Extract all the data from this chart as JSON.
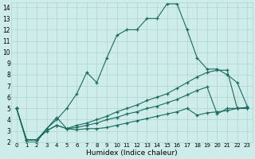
{
  "xlabel": "Humidex (Indice chaleur)",
  "bg_color": "#ceecea",
  "grid_color": "#aed4d0",
  "line_color": "#1a6b5e",
  "xlim": [
    -0.5,
    23.5
  ],
  "ylim": [
    2,
    14.4
  ],
  "xticks": [
    0,
    1,
    2,
    3,
    4,
    5,
    6,
    7,
    8,
    9,
    10,
    11,
    12,
    13,
    14,
    15,
    16,
    17,
    18,
    19,
    20,
    21,
    22,
    23
  ],
  "yticks": [
    2,
    3,
    4,
    5,
    6,
    7,
    8,
    9,
    10,
    11,
    12,
    13,
    14
  ],
  "series": [
    [
      5.0,
      2.0,
      2.0,
      3.2,
      4.0,
      5.0,
      6.3,
      8.2,
      7.3,
      9.5,
      11.5,
      12.0,
      12.0,
      13.0,
      13.0,
      14.3,
      14.3,
      12.0,
      9.5,
      8.5,
      8.5,
      8.0,
      7.3,
      5.2
    ],
    [
      5.0,
      2.2,
      2.2,
      3.0,
      3.5,
      3.2,
      3.5,
      3.7,
      4.0,
      4.3,
      4.7,
      5.0,
      5.3,
      5.7,
      6.0,
      6.3,
      6.8,
      7.3,
      7.8,
      8.2,
      8.4,
      8.4,
      5.0,
      5.0
    ],
    [
      5.0,
      2.2,
      2.2,
      3.0,
      3.5,
      3.2,
      3.3,
      3.5,
      3.7,
      4.0,
      4.2,
      4.5,
      4.7,
      5.0,
      5.2,
      5.5,
      5.8,
      6.2,
      6.6,
      6.9,
      4.5,
      5.0,
      5.0,
      5.1
    ],
    [
      5.0,
      2.2,
      2.2,
      3.2,
      4.2,
      3.2,
      3.1,
      3.2,
      3.2,
      3.3,
      3.5,
      3.7,
      3.9,
      4.1,
      4.3,
      4.5,
      4.7,
      5.0,
      4.4,
      4.6,
      4.7,
      4.8,
      5.0,
      5.0
    ]
  ]
}
